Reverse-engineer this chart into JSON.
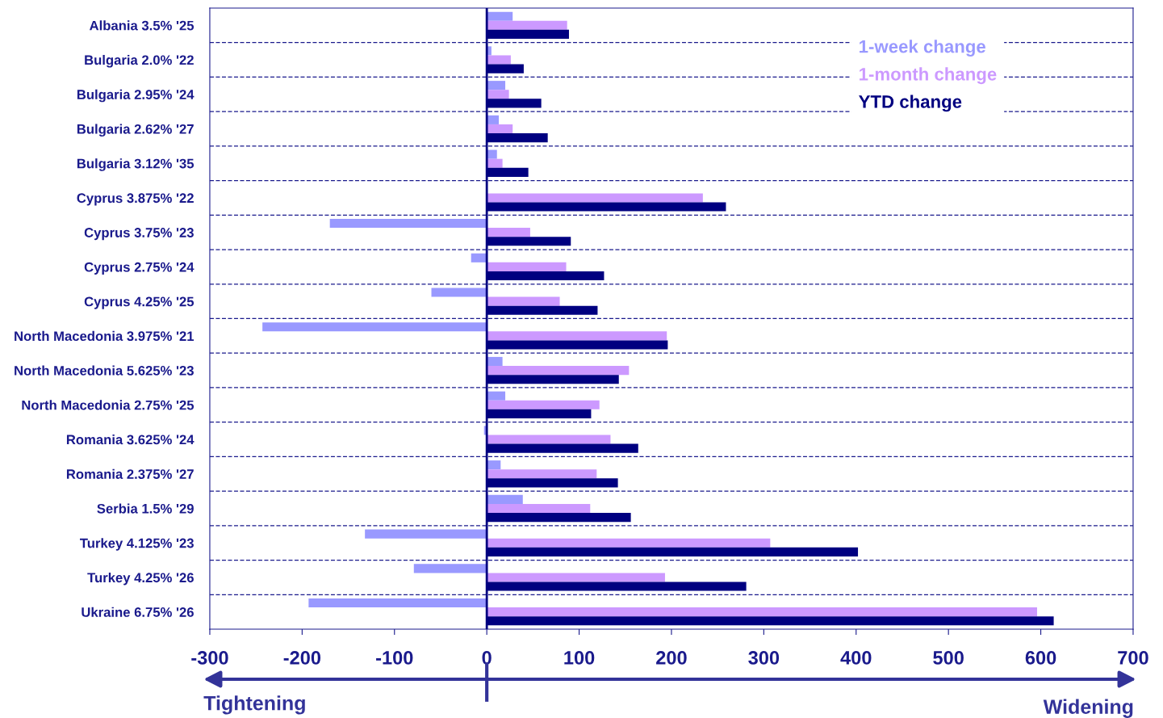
{
  "chart_data": {
    "type": "bar",
    "orientation": "horizontal",
    "categories": [
      "Albania 3.5% '25",
      "Bulgaria 2.0% '22",
      "Bulgaria 2.95% '24",
      "Bulgaria 2.62% '27",
      "Bulgaria 3.12% '35",
      "Cyprus 3.875% '22",
      "Cyprus 3.75% '23",
      "Cyprus 2.75% '24",
      "Cyprus 4.25% '25",
      "North Macedonia 3.975% '21",
      "North Macedonia 5.625% '23",
      "North Macedonia 2.75% '25",
      "Romania 3.625% '24",
      "Romania 2.375% '27",
      "Serbia 1.5% '29",
      "Turkey 4.125% '23",
      "Turkey 4.25% '26",
      "Ukraine 6.75% '26"
    ],
    "series": [
      {
        "name": "1-week change",
        "color": "#9999ff",
        "values": [
          28,
          5,
          20,
          13,
          11,
          0,
          -170,
          -17,
          -60,
          -243,
          17,
          20,
          -3,
          15,
          39,
          -132,
          -79,
          -193
        ]
      },
      {
        "name": "1-month change",
        "color": "#cc99ff",
        "values": [
          87,
          26,
          24,
          28,
          17,
          234,
          47,
          86,
          79,
          195,
          154,
          122,
          134,
          119,
          112,
          307,
          193,
          596
        ]
      },
      {
        "name": "YTD change",
        "color": "#000080",
        "values": [
          89,
          40,
          59,
          66,
          45,
          259,
          91,
          127,
          120,
          196,
          143,
          113,
          164,
          142,
          156,
          402,
          281,
          614
        ]
      }
    ],
    "xlim": [
      -300,
      700
    ],
    "xticks": [
      -300,
      -200,
      -100,
      0,
      100,
      200,
      300,
      400,
      500,
      600,
      700
    ],
    "ref_lines": [
      {
        "axis": "x",
        "value": 0,
        "color": "#000080"
      }
    ],
    "grid": "y",
    "legend": "top right",
    "annotations": [
      "Tightening",
      "Widening"
    ]
  }
}
